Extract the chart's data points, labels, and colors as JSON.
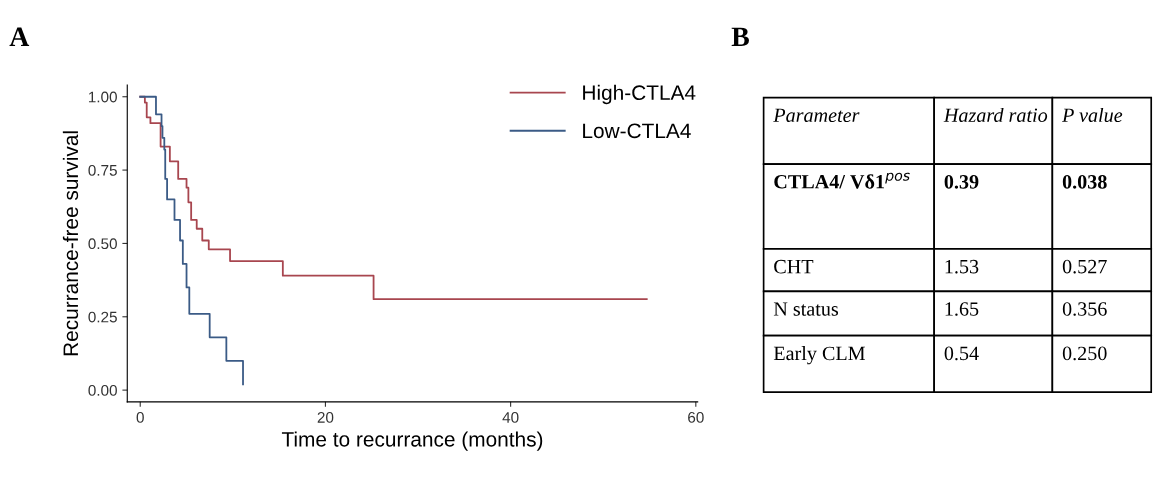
{
  "chart_data": [
    {
      "type": "step",
      "title": "A",
      "xlabel": "Time to recurrance (months)",
      "ylabel": "Recurrance-free survival",
      "series": [
        {
          "name": "High-CTLA4",
          "color": "#a8464f",
          "x": [
            0,
            0.5,
            0.7,
            1.1,
            2.2,
            3.2,
            4.1,
            5.0,
            5.2,
            5.5,
            6.1,
            6.7,
            7.4,
            9.7,
            15.4,
            25.2,
            54.7
          ],
          "values": [
            1.0,
            0.98,
            0.93,
            0.91,
            0.83,
            0.78,
            0.72,
            0.69,
            0.64,
            0.58,
            0.55,
            0.51,
            0.48,
            0.44,
            0.39,
            0.31,
            0.31
          ]
        },
        {
          "name": "Low-CTLA4",
          "color": "#3b5b86",
          "x": [
            0,
            1.7,
            2.3,
            2.4,
            2.6,
            2.7,
            2.9,
            3.7,
            4.3,
            4.6,
            5.0,
            5.3,
            7.5,
            9.3,
            11.1
          ],
          "values": [
            1.0,
            0.94,
            0.9,
            0.86,
            0.82,
            0.72,
            0.65,
            0.58,
            0.51,
            0.43,
            0.35,
            0.26,
            0.18,
            0.1,
            0.02
          ]
        }
      ],
      "xlim": [
        -1.4,
        60.2
      ],
      "xticks": [
        0,
        20,
        40,
        60
      ],
      "ylim": [
        -0.04,
        1.04
      ],
      "yticks": [
        {
          "value": 0,
          "label": "0.00"
        },
        {
          "value": 0.25,
          "label": "0.25"
        },
        {
          "value": 0.5,
          "label": "0.50"
        },
        {
          "value": 0.75,
          "label": "0.75"
        },
        {
          "value": 1,
          "label": "1.00"
        }
      ],
      "grid": false,
      "legend": "top right"
    },
    {
      "type": "other",
      "title": "B",
      "annotations": [
        "Parameter",
        "Hazard ratio",
        "P value",
        "CTLA4/ Vδ1$^{pos}$",
        "0.39",
        "0.038",
        "CHT",
        "1.53",
        "0.527",
        "N status",
        "1.65",
        "0.356",
        "Early CLM",
        "0.54",
        "0.250"
      ]
    }
  ]
}
